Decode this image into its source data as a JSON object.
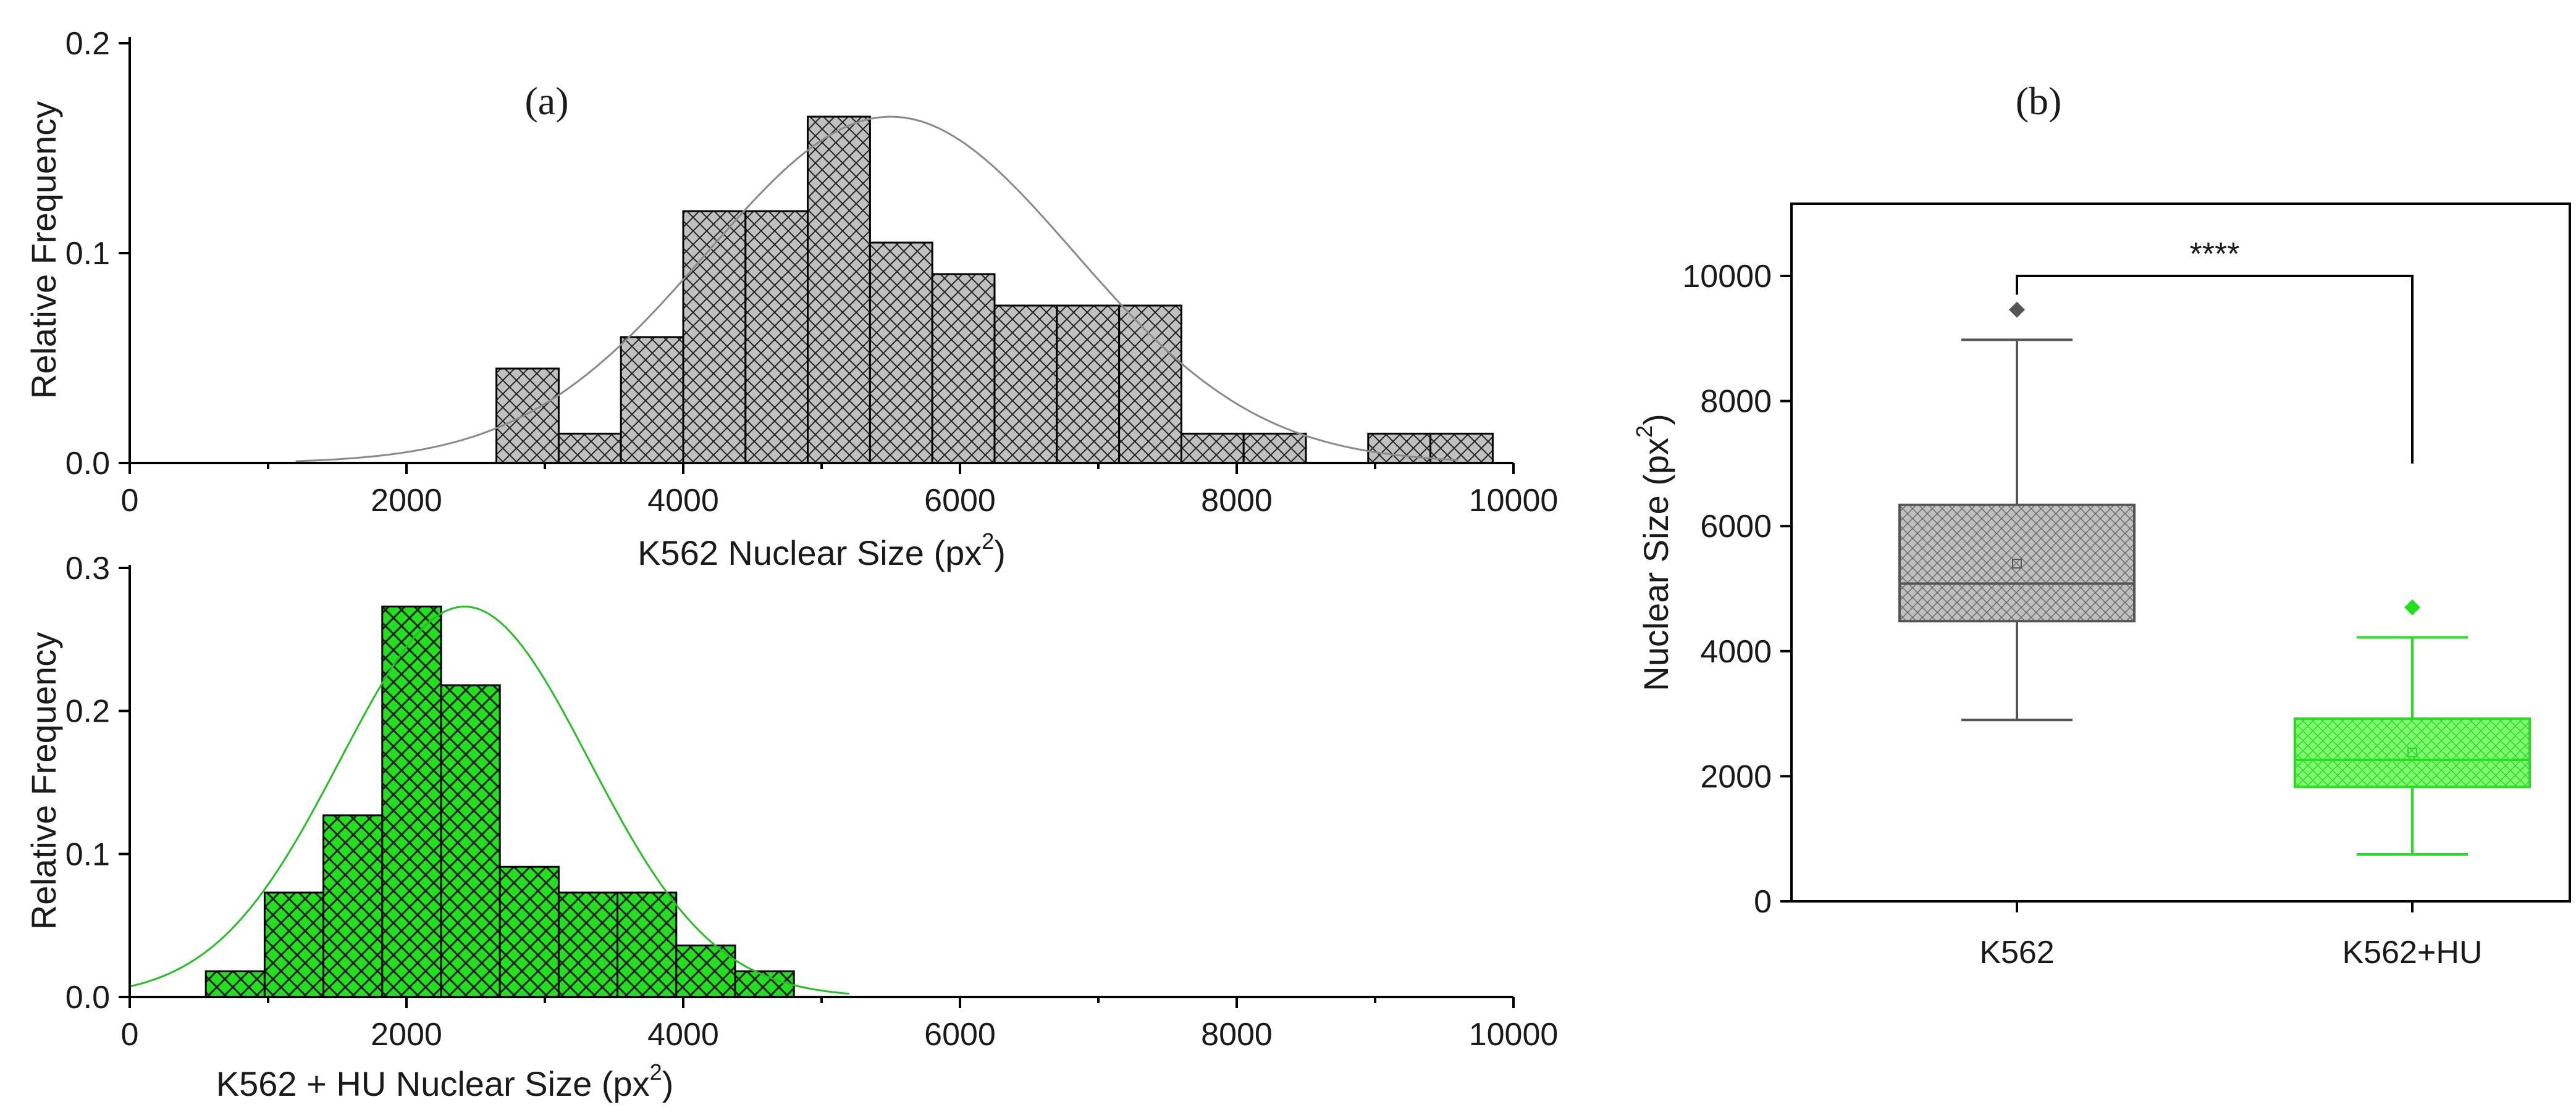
{
  "colors": {
    "k562_fill": "#c0c0c0",
    "k562_curve": "#8a8a8a",
    "k562_box_line": "#555555",
    "hu_fill": "#22e01e",
    "hu_curve": "#26c026",
    "hu_box_line": "#22e01e",
    "hatch": "#222222"
  },
  "labels": {
    "panel_a": "(a)",
    "panel_b": "(b)",
    "significance": "****"
  },
  "chart_data": [
    {
      "type": "bar",
      "subtype": "histogram-with-normal-fit",
      "panel": "(a)",
      "ylabel": "Relative Frequency",
      "xlabel": {
        "main": "K562 Nuclear Size (px",
        "sup": "2",
        "close": ")"
      },
      "xlim": [
        0,
        10000
      ],
      "ylim": [
        0,
        0.2
      ],
      "xticks": [
        "0",
        "2000",
        "4000",
        "6000",
        "8000",
        "10000"
      ],
      "yticks": [
        "0.0",
        "0.1",
        "0.2"
      ],
      "bin_width": 450,
      "bins": [
        {
          "start": 2650,
          "value": 0.045
        },
        {
          "start": 3100,
          "value": 0.014
        },
        {
          "start": 3550,
          "value": 0.06
        },
        {
          "start": 4000,
          "value": 0.12
        },
        {
          "start": 4450,
          "value": 0.12
        },
        {
          "start": 4900,
          "value": 0.165
        },
        {
          "start": 5350,
          "value": 0.105
        },
        {
          "start": 5800,
          "value": 0.09
        },
        {
          "start": 6250,
          "value": 0.075
        },
        {
          "start": 6700,
          "value": 0.075
        },
        {
          "start": 7150,
          "value": 0.075
        },
        {
          "start": 7600,
          "value": 0.014
        },
        {
          "start": 8050,
          "value": 0.014
        },
        {
          "start": 8500,
          "value": 0.0
        },
        {
          "start": 8950,
          "value": 0.014
        },
        {
          "start": 9400,
          "value": 0.014
        }
      ],
      "fit": {
        "mean": 5500,
        "sd": 1330,
        "peak": 0.165,
        "from": 1200,
        "to": 9600
      },
      "grid": false
    },
    {
      "type": "bar",
      "subtype": "histogram-with-normal-fit",
      "panel": "(a)",
      "ylabel": "Relative Frequency",
      "xlabel": {
        "main": "K562 + HU Nuclear Size (px",
        "sup": "2",
        "close": ")"
      },
      "xlim": [
        0,
        10000
      ],
      "ylim": [
        0,
        0.3
      ],
      "xticks": [
        "0",
        "2000",
        "4000",
        "6000",
        "8000",
        "10000"
      ],
      "yticks": [
        "0.0",
        "0.1",
        "0.2",
        "0.3"
      ],
      "bin_width": 425,
      "bins": [
        {
          "start": 550,
          "value": 0.018
        },
        {
          "start": 975,
          "value": 0.073
        },
        {
          "start": 1400,
          "value": 0.127
        },
        {
          "start": 1825,
          "value": 0.273
        },
        {
          "start": 2250,
          "value": 0.218
        },
        {
          "start": 2675,
          "value": 0.091
        },
        {
          "start": 3100,
          "value": 0.073
        },
        {
          "start": 3525,
          "value": 0.073
        },
        {
          "start": 3950,
          "value": 0.036
        },
        {
          "start": 4375,
          "value": 0.018
        }
      ],
      "fit": {
        "mean": 2420,
        "sd": 900,
        "peak": 0.273,
        "from": 0,
        "to": 5200
      },
      "grid": false
    },
    {
      "type": "box",
      "panel": "(b)",
      "ylabel": {
        "main": "Nuclear Size (px",
        "sup": "2",
        "close": ")"
      },
      "ylim": [
        0,
        10000
      ],
      "yticks": [
        "0",
        "2000",
        "4000",
        "6000",
        "8000",
        "10000"
      ],
      "categories": [
        "K562",
        "K562+HU"
      ],
      "boxes": [
        {
          "name": "K562",
          "whisker_low": 2900,
          "q1": 4480,
          "median": 5080,
          "mean": 5400,
          "q3": 6340,
          "whisker_high": 8980,
          "outlier": 9460
        },
        {
          "name": "K562+HU",
          "whisker_low": 750,
          "q1": 1830,
          "median": 2260,
          "mean": 2380,
          "q3": 2920,
          "whisker_high": 4220,
          "outlier": 4700
        }
      ],
      "significance_bracket": {
        "y": 10000,
        "left_drop_to": 9700,
        "right_drop_to": 7000,
        "label": "****"
      },
      "grid": false
    }
  ]
}
